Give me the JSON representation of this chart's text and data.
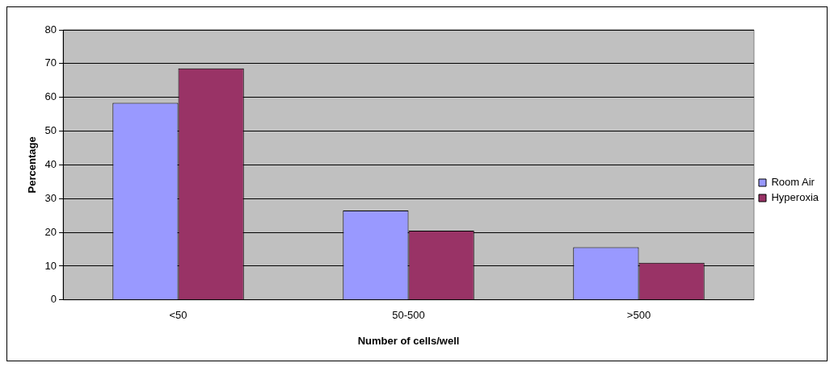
{
  "chart_data": {
    "type": "bar",
    "xlabel": "Number of cells/well",
    "ylabel": "Percentage",
    "categories": [
      "<50",
      "50-500",
      ">500"
    ],
    "series": [
      {
        "name": "Room Air",
        "color": "#9999ff",
        "values": [
          58.4,
          26.5,
          15.6
        ]
      },
      {
        "name": "Hyperoxia",
        "color": "#993366",
        "values": [
          68.6,
          20.5,
          11.0
        ]
      }
    ],
    "ylim": [
      0,
      80
    ],
    "yticks": [
      0,
      10,
      20,
      30,
      40,
      50,
      60,
      70,
      80
    ],
    "grid": "y",
    "legend": "right"
  }
}
